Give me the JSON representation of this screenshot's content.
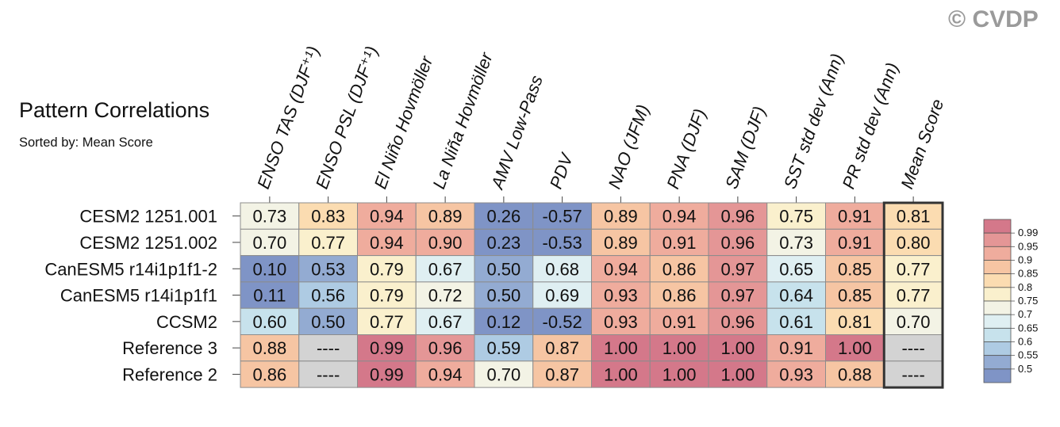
{
  "title": "Pattern Correlations",
  "subtitle": "Sorted by: Mean Score",
  "watermark": "© CVDP",
  "chart_data": {
    "type": "heatmap",
    "columns": [
      "ENSO TAS (DJF⁺¹)",
      "ENSO PSL (DJF⁺¹)",
      "El Niño Hovmöller",
      "La Niña Hovmöller",
      "AMV Low-Pass",
      "PDV",
      "NAO (JFM)",
      "PNA (DJF)",
      "SAM (DJF)",
      "SST std dev (Ann)",
      "PR std dev (Ann)",
      "Mean Score"
    ],
    "rows": [
      "CESM2 1251.001",
      "CESM2 1251.002",
      "CanESM5 r14i1p1f1-2",
      "CanESM5 r14i1p1f1",
      "CCSM2",
      "Reference 3",
      "Reference 2"
    ],
    "values": [
      [
        "0.73",
        "0.83",
        "0.94",
        "0.89",
        "0.26",
        "-0.57",
        "0.89",
        "0.94",
        "0.96",
        "0.75",
        "0.91",
        "0.81"
      ],
      [
        "0.70",
        "0.77",
        "0.94",
        "0.90",
        "0.23",
        "-0.53",
        "0.89",
        "0.91",
        "0.96",
        "0.73",
        "0.91",
        "0.80"
      ],
      [
        "0.10",
        "0.53",
        "0.79",
        "0.67",
        "0.50",
        "0.68",
        "0.94",
        "0.86",
        "0.97",
        "0.65",
        "0.85",
        "0.77"
      ],
      [
        "0.11",
        "0.56",
        "0.79",
        "0.72",
        "0.50",
        "0.69",
        "0.93",
        "0.86",
        "0.97",
        "0.64",
        "0.85",
        "0.77"
      ],
      [
        "0.60",
        "0.50",
        "0.77",
        "0.67",
        "0.12",
        "-0.52",
        "0.93",
        "0.91",
        "0.96",
        "0.61",
        "0.81",
        "0.70"
      ],
      [
        "0.88",
        "----",
        "0.99",
        "0.96",
        "0.59",
        "0.87",
        "1.00",
        "1.00",
        "1.00",
        "0.91",
        "1.00",
        "----"
      ],
      [
        "0.86",
        "----",
        "0.99",
        "0.94",
        "0.70",
        "0.87",
        "1.00",
        "1.00",
        "1.00",
        "0.93",
        "0.88",
        "----"
      ]
    ],
    "highlighted_column": "Mean Score",
    "colorbar": {
      "labels": [
        "0.99",
        "0.95",
        "0.9",
        "0.85",
        "0.8",
        "0.75",
        "0.7",
        "0.65",
        "0.6",
        "0.55",
        "0.5"
      ],
      "colors_top_to_bottom": [
        "#d4788a",
        "#e49696",
        "#efac9d",
        "#f6c5a3",
        "#fbdcb1",
        "#faf0cd",
        "#f3f3e5",
        "#dfeff2",
        "#c7e2ec",
        "#aecbe3",
        "#93abd2",
        "#7f94c6"
      ]
    },
    "missing_color": "#d3d3d3"
  }
}
